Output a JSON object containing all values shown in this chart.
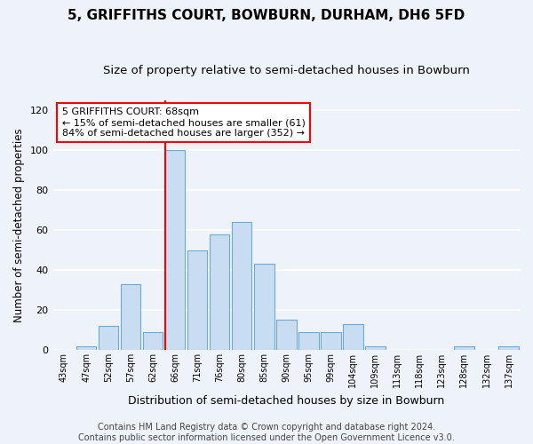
{
  "title": "5, GRIFFITHS COURT, BOWBURN, DURHAM, DH6 5FD",
  "subtitle": "Size of property relative to semi-detached houses in Bowburn",
  "xlabel": "Distribution of semi-detached houses by size in Bowburn",
  "ylabel": "Number of semi-detached properties",
  "bar_labels": [
    "43sqm",
    "47sqm",
    "52sqm",
    "57sqm",
    "62sqm",
    "66sqm",
    "71sqm",
    "76sqm",
    "80sqm",
    "85sqm",
    "90sqm",
    "95sqm",
    "99sqm",
    "104sqm",
    "109sqm",
    "113sqm",
    "118sqm",
    "123sqm",
    "128sqm",
    "132sqm",
    "137sqm"
  ],
  "bar_values": [
    0,
    2,
    12,
    33,
    9,
    100,
    50,
    58,
    64,
    43,
    15,
    9,
    9,
    13,
    2,
    0,
    0,
    0,
    2,
    0,
    2
  ],
  "bar_color": "#c9ddf2",
  "bar_edge_color": "#6aaad4",
  "vline_color": "red",
  "vline_x_index": 5,
  "annotation_text": "5 GRIFFITHS COURT: 68sqm\n← 15% of semi-detached houses are smaller (61)\n84% of semi-detached houses are larger (352) →",
  "annotation_box_color": "white",
  "annotation_box_edge_color": "red",
  "ylim": [
    0,
    125
  ],
  "yticks": [
    0,
    20,
    40,
    60,
    80,
    100,
    120
  ],
  "footer_text": "Contains HM Land Registry data © Crown copyright and database right 2024.\nContains public sector information licensed under the Open Government Licence v3.0.",
  "background_color": "#eef2f9",
  "grid_color": "white",
  "title_fontsize": 11,
  "subtitle_fontsize": 9.5,
  "xlabel_fontsize": 9,
  "ylabel_fontsize": 8.5,
  "tick_fontsize": 7,
  "annotation_fontsize": 8,
  "footer_fontsize": 7
}
